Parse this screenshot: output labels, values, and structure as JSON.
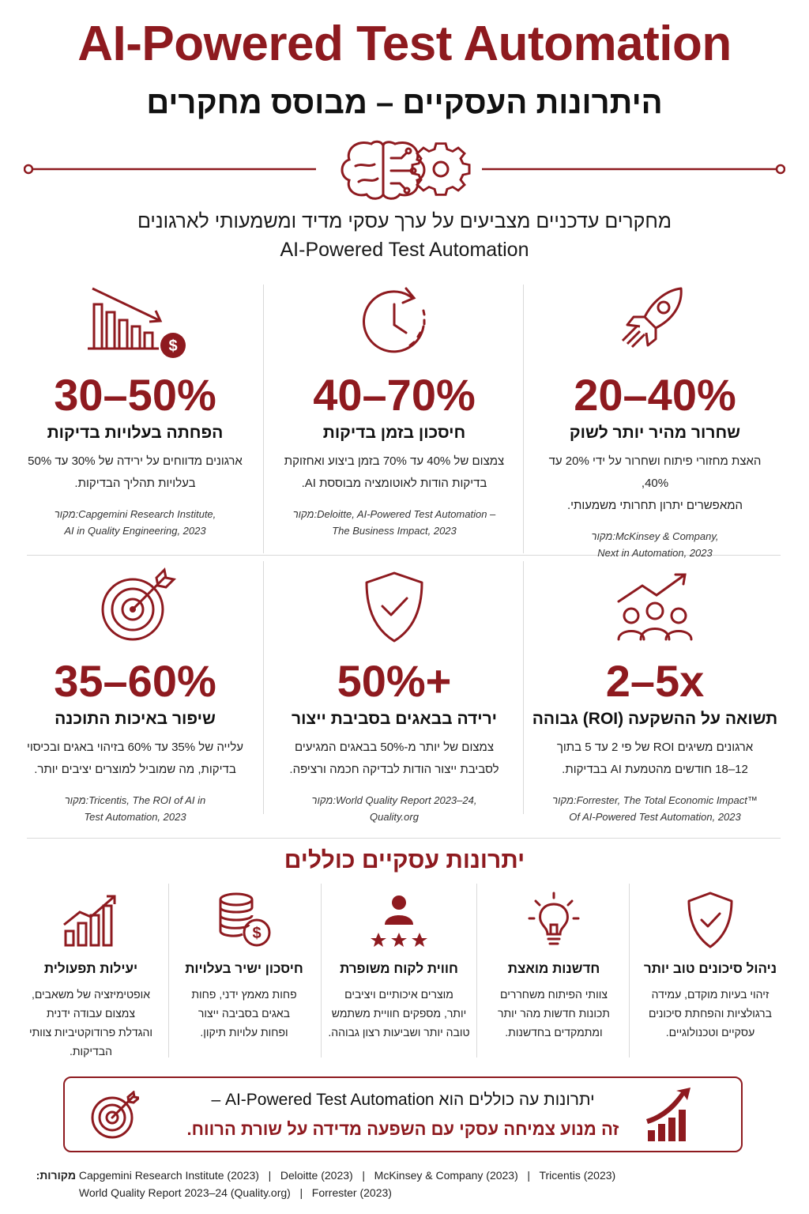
{
  "header": {
    "title": "AI-Powered Test Automation",
    "subtitle": "היתרונות העסקיים – מבוסס מחקרים"
  },
  "intro": {
    "line1": "מחקרים עדכניים מצביעים על ערך עסקי מדיד ומשמעותי לארגונים",
    "line2": "AI-Powered Test Automation"
  },
  "stats": [
    {
      "icon": "rocket-icon",
      "value": "20–40%",
      "label": "שחרור מהיר יותר לשוק",
      "desc1": "האצת מחזורי פיתוח ושחרור על ידי 20% עד 40%,",
      "desc2": "המאפשרים יתרון תחרותי משמעותי.",
      "src_prefix": "מקור:",
      "src1": "McKinsey & Company,",
      "src2": "Next in Automation, 2023"
    },
    {
      "icon": "clock-icon",
      "value": "40–70%",
      "label": "חיסכון בזמן בדיקות",
      "desc1": "צמצום של 40% עד 70% בזמן ביצוע ואחזוקת",
      "desc2": "בדיקות הודות לאוטומציה מבוססת AI.",
      "src_prefix": "מקור:",
      "src1": "Deloitte, AI-Powered Test Automation –",
      "src2": "The Business Impact, 2023"
    },
    {
      "icon": "cost-down-chart-icon",
      "value": "30–50%",
      "label": "הפחתה בעלויות בדיקות",
      "desc1": "ארגונים מדווחים על ירידה של 30% עד 50%",
      "desc2": "בעלויות תהליך הבדיקות.",
      "src_prefix": "מקור:",
      "src1": "Capgemini Research Institute,",
      "src2": "AI in Quality Engineering, 2023"
    },
    {
      "icon": "roi-growth-icon",
      "value": "2–5x",
      "label": "תשואה על ההשקעה (ROI) גבוהה",
      "desc1": "ארגונים משיגים ROI של פי 2 עד 5 בתוך",
      "desc2": "12–18 חודשים מהטמעת AI בבדיקות.",
      "src_prefix": "מקור:",
      "src1": "Forrester, The Total Economic Impact™",
      "src2": "Of AI-Powered Test Automation, 2023"
    },
    {
      "icon": "shield-check-icon",
      "value": "50%+",
      "label": "ירידה בבאגים בסביבת ייצור",
      "desc1": "צמצום של יותר מ-50% בבאגים המגיעים",
      "desc2": "לסביבת ייצור הודות לבדיקה חכמה ורציפה.",
      "src_prefix": "מקור:",
      "src1": "World Quality Report 2023–24,",
      "src2": "Quality.org"
    },
    {
      "icon": "target-icon",
      "value": "35–60%",
      "label": "שיפור באיכות התוכנה",
      "desc1": "עלייה של 35% עד 60% בזיהוי באגים ובכיסוי",
      "desc2": "בדיקות, מה שמוביל למוצרים יציבים יותר.",
      "src_prefix": "מקור:",
      "src1": "Tricentis, The ROI of AI in",
      "src2": "Test Automation, 2023"
    }
  ],
  "benefits_section": {
    "title": "יתרונות עסקיים כוללים",
    "items": [
      {
        "icon": "shield-check-icon",
        "title": "ניהול סיכונים טוב יותר",
        "lines": [
          "זיהוי בעיות מוקדם, עמידה",
          "ברגולציות והפחתת סיכונים",
          "עסקיים וטכנולוגיים."
        ]
      },
      {
        "icon": "lightbulb-icon",
        "title": "חדשנות מואצת",
        "lines": [
          "צוותי הפיתוח משחררים",
          "תכונות חדשות מהר יותר",
          "ומתמקדים בחדשנות."
        ]
      },
      {
        "icon": "customer-rating-icon",
        "title": "חווית לקוח משופרת",
        "lines": [
          "מוצרים איכותיים ויציבים",
          "יותר, מספקים חוויית משתמש",
          "טובה יותר ושביעות רצון גבוהה."
        ]
      },
      {
        "icon": "coins-icon",
        "title": "חיסכון ישיר בעלויות",
        "lines": [
          "פחות מאמץ ידני, פחות",
          "באגים בסביבה ייצור",
          "ופחות עלויות תיקון."
        ]
      },
      {
        "icon": "efficiency-chart-icon",
        "title": "יעילות תפעולית",
        "lines": [
          "אופטימיזציה של משאבים,",
          "צמצום עבודה ידנית",
          "והגדלת פרודוקטיביות צוותי",
          "הבדיקות."
        ]
      }
    ]
  },
  "callout": {
    "line1": "יתרונות עה כוללים הוא AI-Powered Test Automation –",
    "line2": "זה מנוע צמיחה עסקי עם השפעה מדידה על שורת הרווח."
  },
  "sources": {
    "label": "מקורות:",
    "line1": "Capgemini Research Institute (2023)   |   Deloitte (2023)   |   McKinsey & Company (2023)   |   Tricentis (2023)",
    "line2": "World Quality Report 2023–24 (Quality.org)   |   Forrester (2023)"
  },
  "colors": {
    "accent": "#8e1a1f",
    "divider": "#d9d9d9",
    "text": "#1a1a1a"
  }
}
